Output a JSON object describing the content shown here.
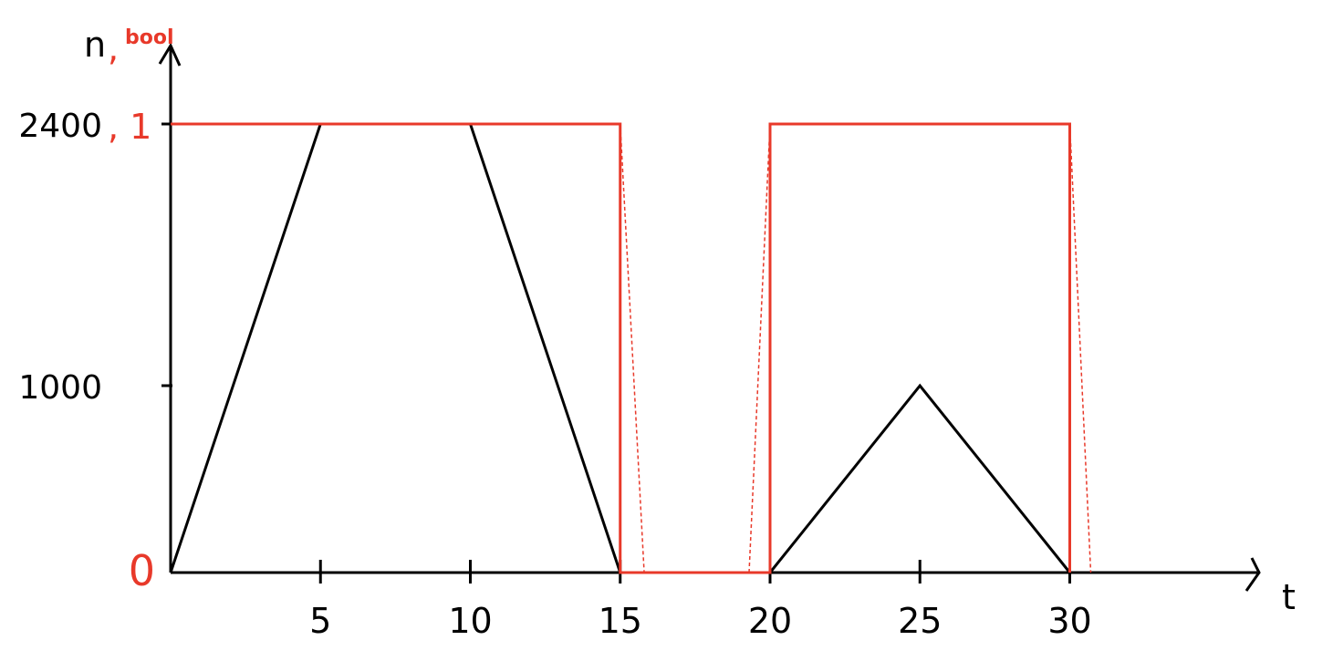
{
  "chart_data": {
    "type": "line",
    "xlabel": "t",
    "ylabel": {
      "primary": "n",
      "separator": ",",
      "secondary": "bool"
    },
    "xlim": [
      0,
      36
    ],
    "ylim": [
      0,
      2400
    ],
    "x_ticks": [
      "5",
      "10",
      "15",
      "20",
      "25",
      "30"
    ],
    "x_tick_values": [
      5,
      10,
      15,
      20,
      25,
      30
    ],
    "y_ticks": [
      {
        "value": 0,
        "label": "0",
        "secondary_label": ""
      },
      {
        "value": 1000,
        "label": "1000",
        "secondary_label": ""
      },
      {
        "value": 2400,
        "label": "2400",
        "secondary_label": "1"
      }
    ],
    "grid": false,
    "colors": {
      "n": "#000000",
      "bool": "#e8392a",
      "axes": "#000000"
    },
    "series": [
      {
        "key": "n",
        "style": "solid",
        "color": "#000000",
        "x": [
          0,
          5,
          10,
          15,
          20,
          25,
          30
        ],
        "y": [
          0,
          2400,
          2400,
          0,
          0,
          1000,
          0
        ]
      },
      {
        "key": "bool",
        "style": "solid",
        "color": "#e8392a",
        "scale_max": 1,
        "x": [
          0,
          15,
          15,
          20,
          20,
          30,
          30
        ],
        "y": [
          1,
          1,
          0,
          0,
          1,
          1,
          0
        ]
      },
      {
        "key": "bool-ramp-1",
        "style": "dashed",
        "color": "#e8392a",
        "scale_max": 1,
        "x": [
          15,
          15.8
        ],
        "y": [
          1,
          0
        ]
      },
      {
        "key": "bool-ramp-2",
        "style": "dashed",
        "color": "#e8392a",
        "scale_max": 1,
        "x": [
          19.3,
          20
        ],
        "y": [
          0,
          1
        ]
      },
      {
        "key": "bool-ramp-3",
        "style": "dashed",
        "color": "#e8392a",
        "scale_max": 1,
        "x": [
          30,
          30.7
        ],
        "y": [
          1,
          0
        ]
      }
    ]
  }
}
